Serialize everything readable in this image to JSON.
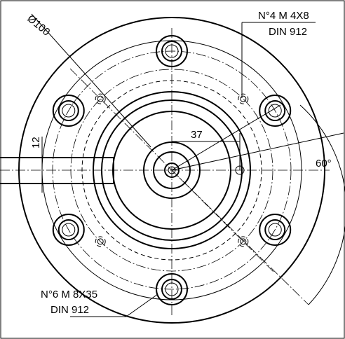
{
  "labels": {
    "diameter": "Ø100",
    "small_screws": {
      "line1": "N°4 M 4X8",
      "line2": "DIN 912"
    },
    "dim_37": "37",
    "dim_12": "12",
    "angle": "60°",
    "large_screws": {
      "line1": "N°6 M 8X35",
      "line2": "DIN 912"
    }
  }
}
